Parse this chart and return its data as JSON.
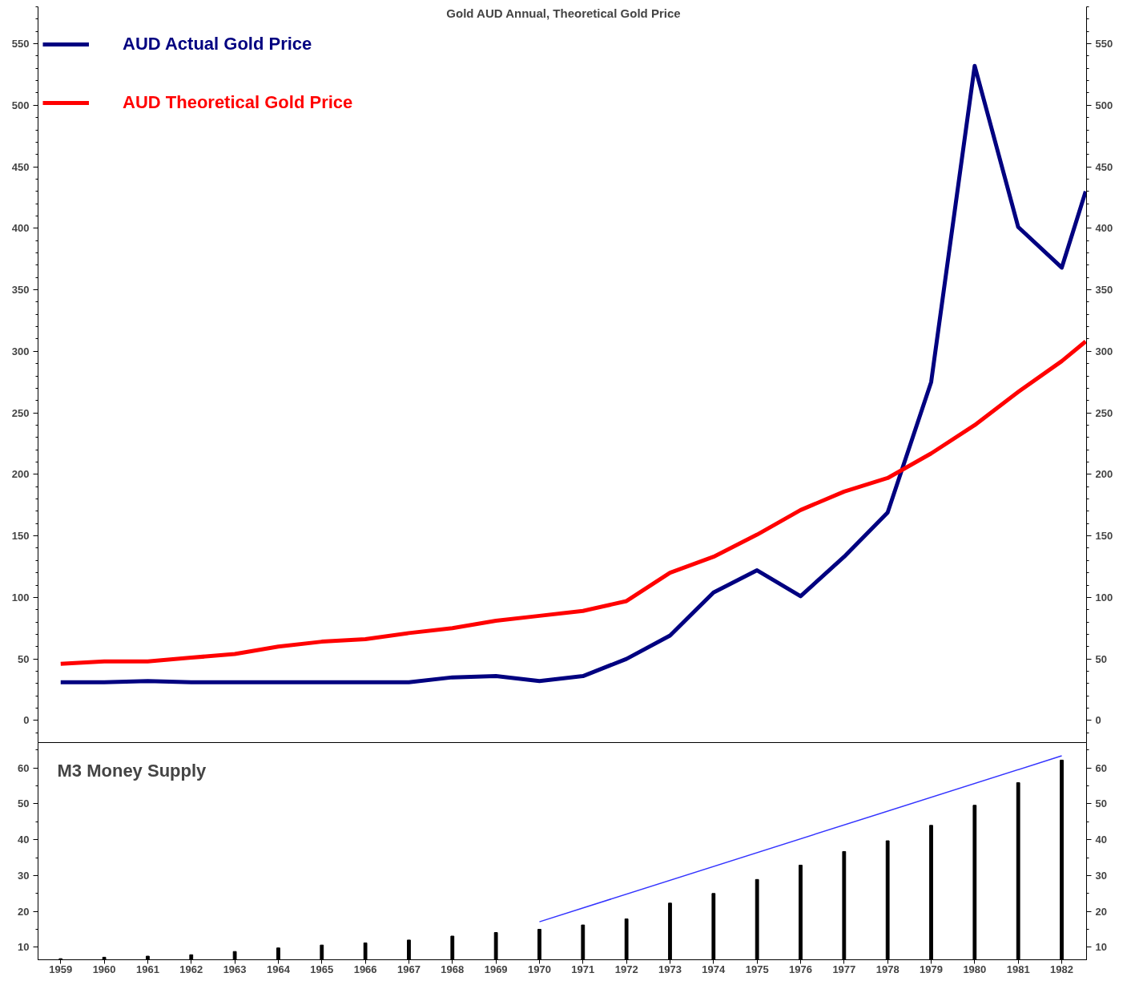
{
  "chart_data": [
    {
      "type": "line",
      "title": "Gold AUD Annual, Theoretical Gold Price",
      "xlim": [
        1958.48,
        1982.57
      ],
      "ylim": [
        -18,
        580
      ],
      "yticks": [
        0,
        50,
        100,
        150,
        200,
        250,
        300,
        350,
        400,
        450,
        500,
        550
      ],
      "y2lim": [
        -18,
        580
      ],
      "y2ticks": [
        0,
        50,
        100,
        150,
        200,
        250,
        300,
        350,
        400,
        450,
        500,
        550
      ],
      "tick_labels": "y",
      "grid": false,
      "legend": "top left",
      "marker": "none",
      "line_style": "solid",
      "series": [
        {
          "name": "AUD Actual Gold Price",
          "color": "#000080",
          "x": [
            1959,
            1960,
            1961,
            1962,
            1963,
            1964,
            1965,
            1966,
            1967,
            1968,
            1969,
            1970,
            1971,
            1972,
            1973,
            1974,
            1975,
            1976,
            1977,
            1978,
            1979,
            1980,
            1981,
            1982,
            1982.55
          ],
          "values": [
            31,
            31,
            32,
            31,
            31,
            31,
            31,
            31,
            31,
            35,
            36,
            32,
            36,
            50,
            69,
            104,
            122,
            101,
            133,
            169,
            275,
            532,
            401,
            368,
            430
          ]
        },
        {
          "name": "AUD Theoretical Gold Price",
          "color": "#ff0000",
          "x": [
            1959,
            1960,
            1961,
            1962,
            1963,
            1964,
            1965,
            1966,
            1967,
            1968,
            1969,
            1970,
            1971,
            1972,
            1973,
            1974,
            1975,
            1976,
            1977,
            1978,
            1979,
            1980,
            1981,
            1982,
            1982.55
          ],
          "values": [
            46,
            48,
            48,
            51,
            54,
            60,
            64,
            66,
            71,
            75,
            81,
            85,
            89,
            97,
            120,
            133,
            151,
            171,
            186,
            197,
            217,
            240,
            267,
            292,
            308
          ]
        }
      ]
    },
    {
      "type": "bar",
      "title": "M3 Money Supply",
      "x": [
        1959,
        1960,
        1961,
        1962,
        1963,
        1964,
        1965,
        1966,
        1967,
        1968,
        1969,
        1970,
        1971,
        1972,
        1973,
        1974,
        1975,
        1976,
        1977,
        1978,
        1979,
        1980,
        1981,
        1982
      ],
      "xlim": [
        1958.48,
        1982.57
      ],
      "xticks": [
        1959,
        1960,
        1961,
        1962,
        1963,
        1964,
        1965,
        1966,
        1967,
        1968,
        1969,
        1970,
        1971,
        1972,
        1973,
        1974,
        1975,
        1976,
        1977,
        1978,
        1979,
        1980,
        1981,
        1982
      ],
      "ylim": [
        6.5,
        67.1
      ],
      "yticks": [
        10,
        20,
        30,
        40,
        50,
        60
      ],
      "y2lim": [
        6.5,
        67.1
      ],
      "y2ticks": [
        10,
        20,
        30,
        40,
        50,
        60
      ],
      "grid": false,
      "series": [
        {
          "type": "bar",
          "color": "#000000",
          "values": [
            6.8,
            7.2,
            7.5,
            7.9,
            8.8,
            9.8,
            10.6,
            11.2,
            12,
            13.1,
            14.1,
            15,
            16.2,
            17.9,
            22.3,
            25,
            28.9,
            32.9,
            36.7,
            39.7,
            44,
            49.6,
            55.9,
            62.2
          ]
        },
        {
          "type": "line",
          "color": "#3333ff",
          "x": [
            1970,
            1982
          ],
          "values": [
            17.1,
            63.4
          ]
        }
      ]
    }
  ]
}
